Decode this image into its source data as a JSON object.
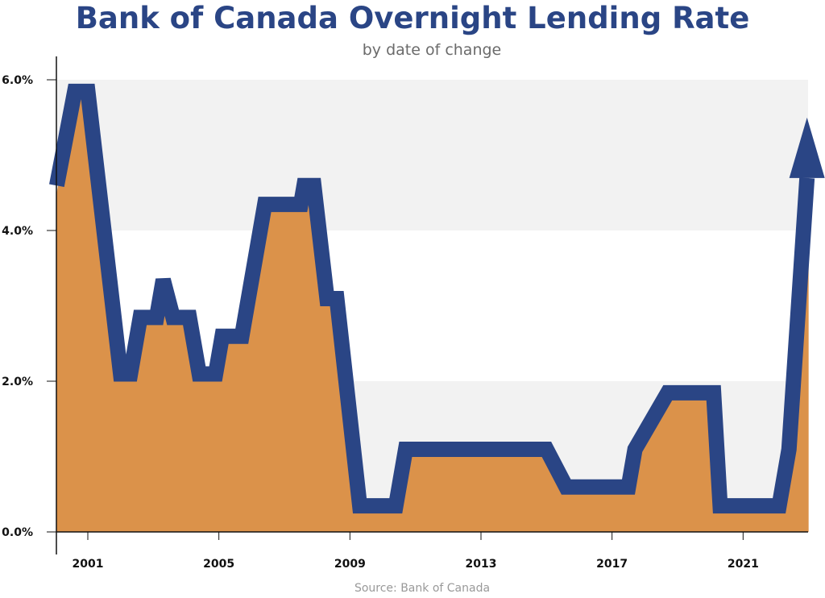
{
  "chart_data": {
    "type": "area",
    "title": "Bank of Canada Overnight Lending Rate",
    "subtitle": "by date of change",
    "source": "Source: Bank of Canada",
    "xlabel": "",
    "ylabel": "",
    "xlim": [
      2000.05,
      2023.0
    ],
    "ylim": [
      0,
      6
    ],
    "x_ticks": [
      2001,
      2005,
      2009,
      2013,
      2017,
      2021
    ],
    "x_tick_labels": [
      "2001",
      "2005",
      "2009",
      "2013",
      "2017",
      "2021"
    ],
    "y_ticks": [
      0,
      2,
      4,
      6
    ],
    "y_tick_labels": [
      "0.0%",
      "2.0%",
      "4.0%",
      "6.0%"
    ],
    "grid_bands": [
      [
        0,
        2
      ],
      [
        4,
        6
      ]
    ],
    "legend": "none",
    "colors": {
      "line": "#2a4585",
      "fill": "#db924a",
      "band": "#f2f2f2",
      "title": "#2a4585"
    },
    "series": [
      {
        "x": [
          2000.05,
          2000.6,
          2001.0,
          2002.0,
          2002.3,
          2002.6,
          2003.1,
          2003.3,
          2003.6,
          2003.8,
          2004.1,
          2004.4,
          2004.9,
          2005.1,
          2005.7,
          2006.4,
          2007.5,
          2007.6,
          2007.9,
          2008.3,
          2008.6,
          2009.3,
          2010.4,
          2010.7,
          2015.0,
          2015.6,
          2017.5,
          2017.7,
          2018.7,
          2020.1,
          2020.3,
          2022.1,
          2022.4,
          2023.0
        ],
        "y": [
          4.5,
          5.75,
          5.75,
          2.0,
          2.0,
          2.75,
          2.75,
          3.25,
          2.75,
          2.75,
          2.75,
          2.0,
          2.0,
          2.5,
          2.5,
          4.25,
          4.25,
          4.5,
          4.5,
          3.0,
          3.0,
          0.25,
          0.25,
          1.0,
          1.0,
          0.5,
          0.5,
          1.0,
          1.75,
          1.75,
          0.25,
          0.25,
          1.0,
          4.75
        ]
      }
    ]
  }
}
